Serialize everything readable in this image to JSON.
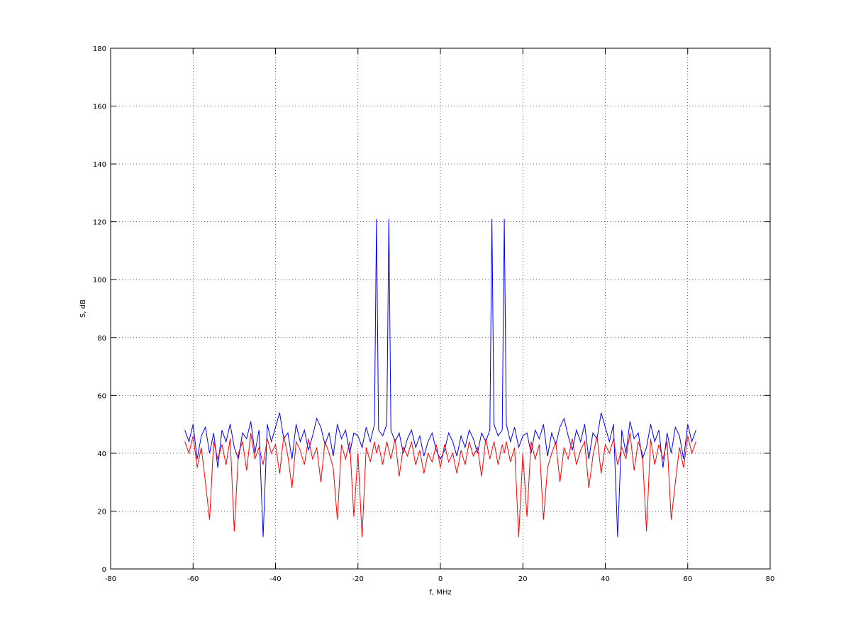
{
  "chart_data": {
    "type": "line",
    "xlabel": "f, MHz",
    "ylabel": "S, dB",
    "x": [
      -62,
      -61,
      -60,
      -59,
      -58,
      -57,
      -56,
      -55,
      -54,
      -53,
      -52,
      -51,
      -50,
      -49,
      -48,
      -47,
      -46,
      -45,
      -44,
      -43,
      -42,
      -41,
      -40,
      -39,
      -38,
      -37,
      -36,
      -35,
      -34,
      -33,
      -32,
      -31,
      -30,
      -29,
      -28,
      -27,
      -26,
      -25,
      -24,
      -23,
      -22,
      -21,
      -20,
      -19,
      -18,
      -17,
      -16,
      -15.5,
      -15,
      -14,
      -13,
      -12.5,
      -12,
      -11,
      -10,
      -9,
      -8,
      -7,
      -6,
      -5,
      -4,
      -3,
      -2,
      -1,
      0,
      1,
      2,
      3,
      4,
      5,
      6,
      7,
      8,
      9,
      10,
      11,
      12,
      12.5,
      13,
      14,
      15,
      15.5,
      16,
      17,
      18,
      19,
      20,
      21,
      22,
      23,
      24,
      25,
      26,
      27,
      28,
      29,
      30,
      31,
      32,
      33,
      34,
      35,
      36,
      37,
      38,
      39,
      40,
      41,
      42,
      43,
      44,
      45,
      46,
      47,
      48,
      49,
      50,
      51,
      52,
      53,
      54,
      55,
      56,
      57,
      58,
      59,
      60,
      61,
      62
    ],
    "series": [
      {
        "color": "#0000ff",
        "values": [
          48,
          44,
          50,
          38,
          46,
          49,
          40,
          47,
          35,
          48,
          44,
          50,
          42,
          38,
          47,
          45,
          51,
          40,
          48,
          11,
          50,
          44,
          49,
          54,
          45,
          47,
          38,
          50,
          44,
          48,
          41,
          46,
          52,
          49,
          43,
          47,
          39,
          50,
          45,
          48,
          40,
          47,
          46,
          42,
          49,
          44,
          50,
          121,
          48,
          46,
          50,
          121,
          48,
          44,
          47,
          40,
          45,
          48,
          42,
          46,
          39,
          44,
          47,
          41,
          38,
          41,
          47,
          44,
          39,
          46,
          42,
          48,
          45,
          40,
          47,
          44,
          48,
          121,
          50,
          46,
          48,
          121,
          50,
          44,
          49,
          42,
          46,
          47,
          40,
          48,
          45,
          50,
          39,
          47,
          43,
          49,
          52,
          46,
          41,
          48,
          44,
          50,
          38,
          47,
          45,
          54,
          49,
          44,
          50,
          11,
          48,
          40,
          51,
          45,
          47,
          38,
          42,
          50,
          44,
          48,
          35,
          47,
          40,
          49,
          46,
          38,
          50,
          44,
          48
        ]
      },
      {
        "color": "#ff0000",
        "values": [
          44,
          40,
          46,
          35,
          42,
          30,
          17,
          44,
          38,
          43,
          36,
          45,
          13,
          40,
          44,
          34,
          47,
          38,
          42,
          36,
          45,
          40,
          43,
          33,
          46,
          39,
          28,
          44,
          41,
          36,
          45,
          38,
          42,
          30,
          44,
          40,
          35,
          17,
          43,
          38,
          44,
          18,
          40,
          11,
          42,
          37,
          44,
          40,
          43,
          36,
          44,
          41,
          38,
          45,
          32,
          42,
          39,
          44,
          36,
          41,
          33,
          40,
          37,
          43,
          35,
          43,
          37,
          40,
          33,
          41,
          36,
          44,
          39,
          42,
          32,
          45,
          38,
          41,
          44,
          36,
          43,
          40,
          44,
          37,
          42,
          11,
          40,
          18,
          44,
          38,
          43,
          17,
          35,
          40,
          44,
          30,
          42,
          38,
          45,
          36,
          41,
          44,
          28,
          39,
          46,
          33,
          43,
          40,
          45,
          36,
          42,
          38,
          47,
          34,
          44,
          40,
          13,
          45,
          36,
          43,
          38,
          44,
          17,
          30,
          42,
          35,
          46,
          40,
          44
        ]
      }
    ],
    "xlim": [
      -80,
      80
    ],
    "xticks": [
      -80,
      -60,
      -40,
      -20,
      0,
      20,
      40,
      60,
      80
    ],
    "ylim": [
      0,
      180
    ],
    "yticks": [
      0,
      20,
      40,
      60,
      80,
      100,
      120,
      140,
      160,
      180
    ],
    "grid": true
  }
}
